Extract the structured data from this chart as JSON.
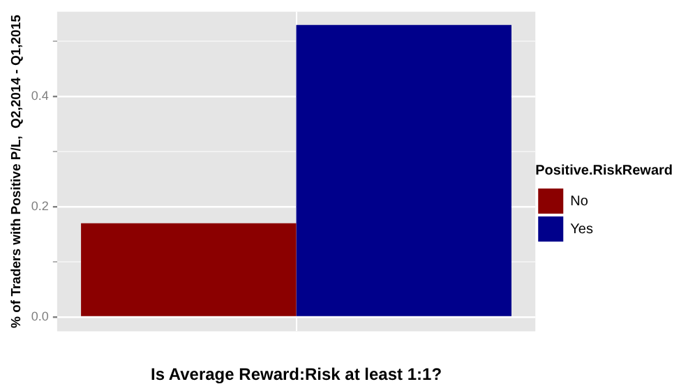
{
  "chart_data": {
    "type": "bar",
    "xlabel": "Is Average Reward:Risk at least 1:1?",
    "ylabel": "% of Traders with Positive P/L,  Q2,2014 - Q1,2015",
    "legend_title": "Positive.RiskReward",
    "categories": [
      null
    ],
    "series": [
      {
        "name": "No",
        "color": "#8b0000",
        "values": [
          0.17
        ]
      },
      {
        "name": "Yes",
        "color": "#00008b",
        "values": [
          0.53
        ]
      }
    ],
    "ylim": [
      -0.026,
      0.554
    ],
    "yticks": [
      {
        "value": 0,
        "label": "0.0"
      },
      {
        "value": 0.1,
        "label": null
      },
      {
        "value": 0.2,
        "label": "0.2"
      },
      {
        "value": 0.3,
        "label": null
      },
      {
        "value": 0.4,
        "label": "0.4"
      },
      {
        "value": 0.5,
        "label": null
      }
    ],
    "grid": true,
    "legend": "right"
  }
}
